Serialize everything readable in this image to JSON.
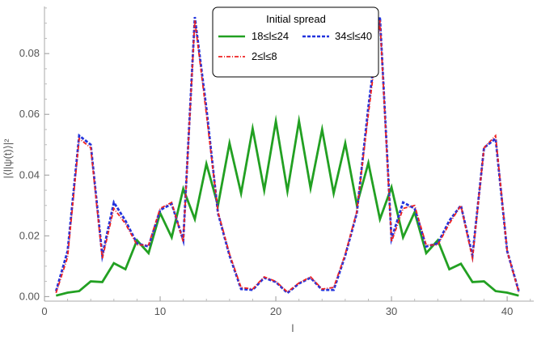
{
  "chart_data": {
    "type": "line",
    "xlabel": "l",
    "ylabel": "|⟨l|ψ(t)⟩|²",
    "xlim": [
      0,
      42.3
    ],
    "ylim": [
      -0.0015,
      0.0955
    ],
    "xticks": [
      0,
      10,
      20,
      30,
      40
    ],
    "yticks": [
      0.0,
      0.02,
      0.04,
      0.06,
      0.08
    ],
    "xtick_labels": [
      "0",
      "10",
      "20",
      "30",
      "40"
    ],
    "ytick_labels": [
      "0.00",
      "0.02",
      "0.04",
      "0.06",
      "0.08"
    ],
    "grid": false,
    "legend": {
      "title": "Initial spread",
      "position": "top-center",
      "entries": [
        {
          "label": "18≤l≤24",
          "series": 0
        },
        {
          "label": "34≤l≤40",
          "series": 1
        },
        {
          "label": "2≤l≤8",
          "series": 2
        }
      ]
    },
    "x": [
      1,
      2,
      3,
      4,
      5,
      6,
      7,
      8,
      9,
      10,
      11,
      12,
      13,
      14,
      15,
      16,
      17,
      18,
      19,
      20,
      21,
      22,
      23,
      24,
      25,
      26,
      27,
      28,
      29,
      30,
      31,
      32,
      33,
      34,
      35,
      36,
      37,
      38,
      39,
      40,
      41
    ],
    "series": [
      {
        "name": "18≤l≤24",
        "color": "#22a022",
        "style": "solid",
        "values": [
          0.0003,
          0.0013,
          0.0018,
          0.005,
          0.0048,
          0.011,
          0.009,
          0.0185,
          0.0143,
          0.0275,
          0.0195,
          0.0355,
          0.0255,
          0.0437,
          0.03,
          0.0505,
          0.034,
          0.0553,
          0.035,
          0.0577,
          0.0347,
          0.0578,
          0.0357,
          0.055,
          0.034,
          0.0505,
          0.0302,
          0.044,
          0.0255,
          0.036,
          0.0195,
          0.0278,
          0.0143,
          0.0185,
          0.009,
          0.0108,
          0.0048,
          0.005,
          0.0018,
          0.0013,
          0.0003
        ]
      },
      {
        "name": "34≤l≤40",
        "color": "#2233dd",
        "style": "dashed",
        "values": [
          0.0018,
          0.015,
          0.053,
          0.05,
          0.0135,
          0.031,
          0.025,
          0.0175,
          0.0165,
          0.0285,
          0.0305,
          0.0185,
          0.092,
          0.062,
          0.0275,
          0.0135,
          0.0025,
          0.0022,
          0.0062,
          0.0048,
          0.0012,
          0.0043,
          0.0062,
          0.0022,
          0.0022,
          0.0135,
          0.0275,
          0.0625,
          0.092,
          0.019,
          0.031,
          0.029,
          0.0165,
          0.0175,
          0.025,
          0.03,
          0.0135,
          0.049,
          0.052,
          0.015,
          0.0018
        ]
      },
      {
        "name": "2≤l≤8",
        "color": "#ee2222",
        "style": "dash-dot",
        "values": [
          0.0012,
          0.013,
          0.052,
          0.049,
          0.0125,
          0.029,
          0.024,
          0.017,
          0.017,
          0.029,
          0.031,
          0.018,
          0.091,
          0.06,
          0.028,
          0.014,
          0.003,
          0.0025,
          0.0065,
          0.005,
          0.0015,
          0.0045,
          0.0065,
          0.0025,
          0.003,
          0.014,
          0.028,
          0.06,
          0.091,
          0.018,
          0.029,
          0.03,
          0.017,
          0.017,
          0.024,
          0.03,
          0.0125,
          0.049,
          0.053,
          0.015,
          0.0015
        ]
      }
    ]
  }
}
